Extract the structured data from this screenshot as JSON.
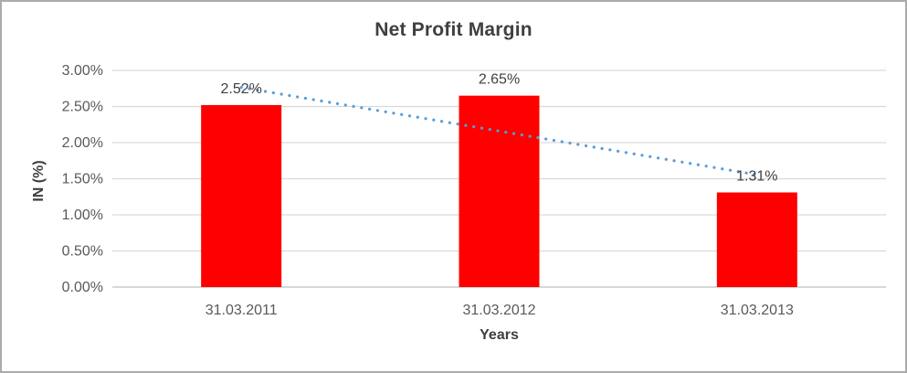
{
  "chart_data": {
    "type": "bar",
    "title": "Net Profit Margin",
    "xlabel": "Years",
    "ylabel": "IN (%)",
    "categories": [
      "31.03.2011",
      "31.03.2012",
      "31.03.2013"
    ],
    "series": [
      {
        "name": "Net Profit Margin",
        "values": [
          2.52,
          2.65,
          1.31
        ]
      }
    ],
    "data_labels": [
      "2.52%",
      "2.65%",
      "1.31%"
    ],
    "ylim": [
      0,
      3
    ],
    "ytick_step": 0.5,
    "ytick_labels": [
      "0.00%",
      "0.50%",
      "1.00%",
      "1.50%",
      "2.00%",
      "2.50%",
      "3.00%"
    ],
    "grid": "horizontal",
    "legend": "none",
    "trendline": {
      "type": "linear",
      "style": "dotted",
      "color": "#5B9BD5"
    },
    "colors": {
      "bar": "#FF0000",
      "title_text": "#3F3F3F",
      "axis_text": "#595959",
      "data_label_text": "#404040",
      "gridline": "#D9D9D9",
      "axis_line": "#BFBFBF",
      "frame_border": "#ABABAB",
      "background": "#FFFFFF"
    }
  }
}
